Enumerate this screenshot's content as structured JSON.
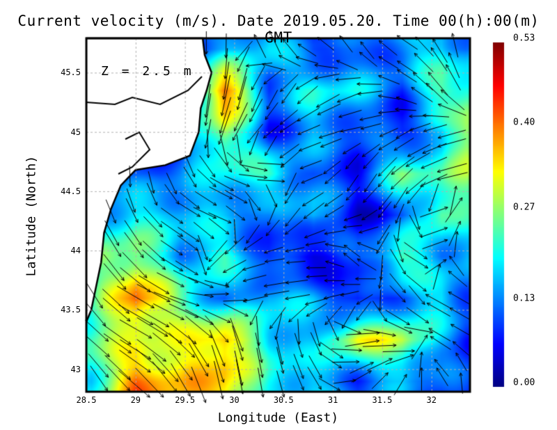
{
  "chart_data": {
    "type": "heatmap",
    "title": "Current velocity (m/s). Date 2019.05.20. Time 00(h):00(m) GMT",
    "annotation": "Z = 2.5 m",
    "xlabel": "Longitude (East)",
    "ylabel": "Latitude (North)",
    "xlim": [
      28.5,
      32.39
    ],
    "ylim": [
      42.81,
      45.79
    ],
    "xticks": [
      "28.5",
      "29",
      "29.5",
      "30",
      "30.5",
      "31",
      "31.5",
      "32"
    ],
    "xtick_values": [
      28.5,
      29,
      29.5,
      30,
      30.5,
      31,
      31.5,
      32
    ],
    "yticks": [
      "43",
      "43.5",
      "44",
      "44.5",
      "45",
      "45.5"
    ],
    "ytick_values": [
      43,
      43.5,
      44,
      44.5,
      45,
      45.5
    ],
    "grid": true,
    "colorbar": {
      "min": 0,
      "max": 0.53,
      "ticks": [
        "0.00",
        "0.13",
        "0.27",
        "0.40",
        "0.53"
      ],
      "tick_values": [
        0,
        0.13,
        0.27,
        0.4,
        0.53
      ],
      "colormap": "jet"
    },
    "grid_lon": [
      28.55,
      29.0,
      29.45,
      29.9,
      30.35,
      30.8,
      31.25,
      31.7,
      32.1,
      32.35
    ],
    "grid_lat": [
      45.7,
      45.35,
      45.0,
      44.65,
      44.3,
      43.95,
      43.6,
      43.25,
      42.9
    ],
    "speed": [
      [
        0.1,
        0.1,
        0.1,
        0.15,
        0.18,
        0.1,
        0.1,
        0.15,
        0.2,
        0.12
      ],
      [
        0.1,
        0.1,
        0.1,
        0.42,
        0.12,
        0.2,
        0.18,
        0.1,
        0.25,
        0.25
      ],
      [
        0.1,
        0.1,
        0.1,
        0.3,
        0.08,
        0.15,
        0.1,
        0.08,
        0.15,
        0.3
      ],
      [
        0.1,
        0.1,
        0.12,
        0.2,
        0.22,
        0.12,
        0.08,
        0.25,
        0.22,
        0.28
      ],
      [
        0.15,
        0.2,
        0.18,
        0.15,
        0.1,
        0.18,
        0.05,
        0.1,
        0.25,
        0.2
      ],
      [
        0.25,
        0.28,
        0.15,
        0.22,
        0.08,
        0.05,
        0.1,
        0.25,
        0.15,
        0.15
      ],
      [
        0.2,
        0.42,
        0.25,
        0.12,
        0.18,
        0.15,
        0.05,
        0.12,
        0.2,
        0.12
      ],
      [
        0.25,
        0.3,
        0.3,
        0.38,
        0.2,
        0.15,
        0.32,
        0.3,
        0.15,
        0.1
      ],
      [
        0.2,
        0.4,
        0.35,
        0.36,
        0.2,
        0.18,
        0.1,
        0.15,
        0.1,
        0.1
      ]
    ],
    "direction_deg": [
      [
        180,
        180,
        180,
        180,
        340,
        300,
        330,
        300,
        330,
        0
      ],
      [
        180,
        180,
        180,
        190,
        200,
        230,
        250,
        300,
        320,
        330
      ],
      [
        180,
        180,
        180,
        200,
        230,
        250,
        260,
        240,
        250,
        260
      ],
      [
        180,
        180,
        160,
        120,
        80,
        250,
        200,
        230,
        250,
        260
      ],
      [
        160,
        150,
        120,
        110,
        200,
        230,
        250,
        200,
        60,
        20
      ],
      [
        150,
        140,
        120,
        240,
        260,
        270,
        320,
        150,
        60,
        300
      ],
      [
        150,
        120,
        110,
        80,
        260,
        260,
        250,
        130,
        300,
        300
      ],
      [
        130,
        120,
        130,
        160,
        170,
        160,
        80,
        110,
        300,
        300
      ],
      [
        150,
        130,
        150,
        170,
        170,
        150,
        60,
        30,
        330,
        0
      ]
    ],
    "land_outline": [
      [
        28.5,
        45.79
      ],
      [
        29.68,
        45.79
      ],
      [
        29.7,
        45.65
      ],
      [
        29.77,
        45.5
      ],
      [
        29.72,
        45.35
      ],
      [
        29.66,
        45.2
      ],
      [
        29.64,
        45.0
      ],
      [
        29.55,
        44.8
      ],
      [
        29.3,
        44.72
      ],
      [
        29.0,
        44.68
      ],
      [
        28.85,
        44.55
      ],
      [
        28.75,
        44.35
      ],
      [
        28.68,
        44.15
      ],
      [
        28.65,
        43.9
      ],
      [
        28.6,
        43.7
      ],
      [
        28.55,
        43.5
      ],
      [
        28.5,
        43.4
      ]
    ]
  }
}
